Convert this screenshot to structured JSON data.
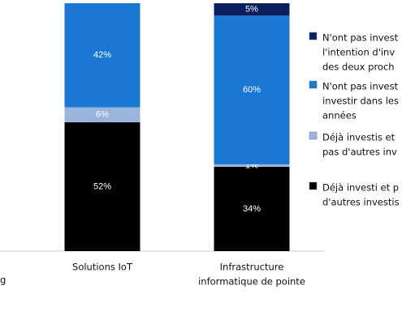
{
  "chart_data": {
    "type": "stacked_bar",
    "categories": [
      [
        "Solutions IoT"
      ],
      [
        "Infrastructure",
        "informatique de pointe"
      ]
    ],
    "series": [
      {
        "name": [
          "Déjà investi et p",
          "d'autres investis"
        ],
        "color": "#000000",
        "values": [
          52,
          34
        ],
        "value_labels": [
          "52%",
          "34%"
        ]
      },
      {
        "name": [
          "Déjà investis et",
          "pas d'autres inv"
        ],
        "color": "#9bb4dc",
        "values": [
          6,
          1
        ],
        "value_labels": [
          "6%",
          "1%"
        ]
      },
      {
        "name": [
          "N'ont pas invest",
          "investir dans les",
          "années"
        ],
        "color": "#1a78d2",
        "values": [
          42,
          60
        ],
        "value_labels": [
          "42%",
          "60%"
        ]
      },
      {
        "name": [
          "N'ont pas invest",
          "l'intention d'inv",
          "des deux proch"
        ],
        "color": "#0b1f5e",
        "values": [
          null,
          5
        ],
        "value_labels": [
          null,
          "5%"
        ]
      }
    ],
    "ylim": [
      0,
      100
    ],
    "left_cut_label": "g"
  }
}
